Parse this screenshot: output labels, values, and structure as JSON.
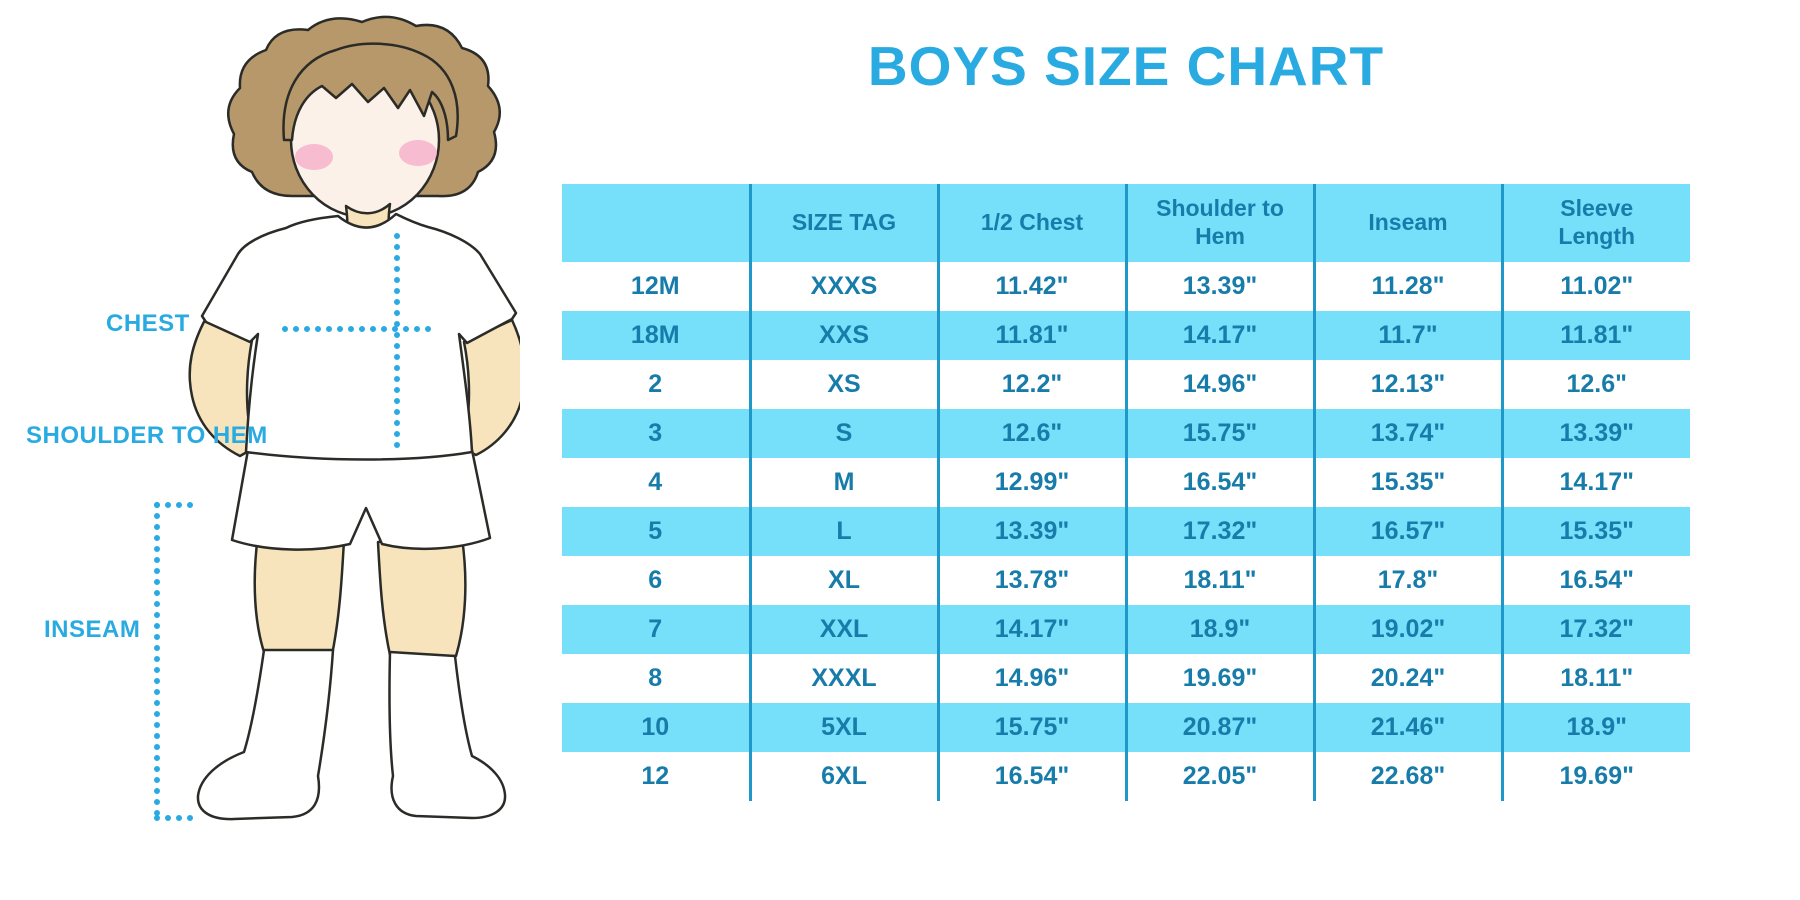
{
  "title": "BOYS SIZE CHART",
  "figure": {
    "labels": {
      "chest": "CHEST",
      "shoulder_to_hem": "SHOULDER TO HEM",
      "inseam": "INSEAM"
    }
  },
  "colors": {
    "accent_blue": "#29ABE2",
    "table_fill": "#76DFFA",
    "table_text": "#177CA9",
    "table_divider": "#1F98C9",
    "skin": "#F7E4BD",
    "hair": "#B6986B",
    "blush": "#F5A9C7"
  },
  "chart_data": {
    "type": "table",
    "title": "BOYS SIZE CHART",
    "columns": [
      "",
      "SIZE TAG",
      "1/2 Chest",
      "Shoulder to Hem",
      "Inseam",
      "Sleeve Length"
    ],
    "rows": [
      [
        "12M",
        "XXXS",
        "11.42\"",
        "13.39\"",
        "11.28\"",
        "11.02\""
      ],
      [
        "18M",
        "XXS",
        "11.81\"",
        "14.17\"",
        "11.7\"",
        "11.81\""
      ],
      [
        "2",
        "XS",
        "12.2\"",
        "14.96\"",
        "12.13\"",
        "12.6\""
      ],
      [
        "3",
        "S",
        "12.6\"",
        "15.75\"",
        "13.74\"",
        "13.39\""
      ],
      [
        "4",
        "M",
        "12.99\"",
        "16.54\"",
        "15.35\"",
        "14.17\""
      ],
      [
        "5",
        "L",
        "13.39\"",
        "17.32\"",
        "16.57\"",
        "15.35\""
      ],
      [
        "6",
        "XL",
        "13.78\"",
        "18.11\"",
        "17.8\"",
        "16.54\""
      ],
      [
        "7",
        "XXL",
        "14.17\"",
        "18.9\"",
        "19.02\"",
        "17.32\""
      ],
      [
        "8",
        "XXXL",
        "14.96\"",
        "19.69\"",
        "20.24\"",
        "18.11\""
      ],
      [
        "10",
        "5XL",
        "15.75\"",
        "20.87\"",
        "21.46\"",
        "18.9\""
      ],
      [
        "12",
        "6XL",
        "16.54\"",
        "22.05\"",
        "22.68\"",
        "19.69\""
      ]
    ]
  }
}
